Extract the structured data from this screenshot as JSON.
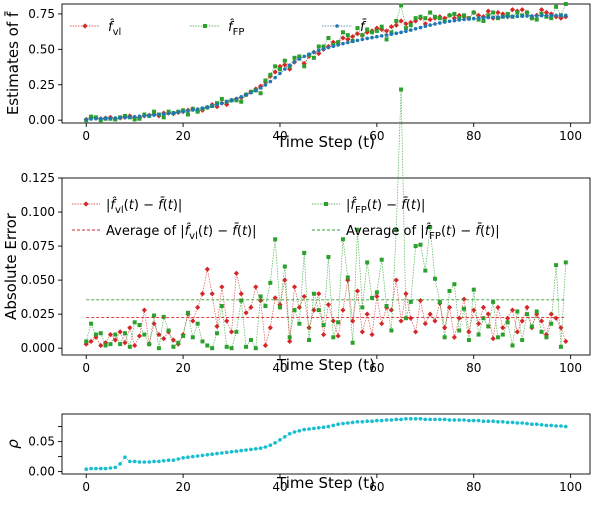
{
  "chart_data": [
    {
      "type": "line",
      "title": "",
      "xlabel": "Time Step (t)",
      "ylabel": "Estimates of f̄",
      "xlim": [
        -5,
        104
      ],
      "ylim": [
        -0.02,
        0.82
      ],
      "xticks": [
        0,
        20,
        40,
        60,
        80,
        100
      ],
      "yticks": [
        0.0,
        0.25,
        0.5,
        0.75
      ],
      "ytick_labels": [
        "0.00",
        "0.25",
        "0.50",
        "0.75"
      ],
      "legend_placement": "top-left",
      "grid": false,
      "x": [
        0,
        1,
        2,
        3,
        4,
        5,
        6,
        7,
        8,
        9,
        10,
        11,
        12,
        13,
        14,
        15,
        16,
        17,
        18,
        19,
        20,
        21,
        22,
        23,
        24,
        25,
        26,
        27,
        28,
        29,
        30,
        31,
        32,
        33,
        34,
        35,
        36,
        37,
        38,
        39,
        40,
        41,
        42,
        43,
        44,
        45,
        46,
        47,
        48,
        49,
        50,
        51,
        52,
        53,
        54,
        55,
        56,
        57,
        58,
        59,
        60,
        61,
        62,
        63,
        64,
        65,
        66,
        67,
        68,
        69,
        70,
        71,
        72,
        73,
        74,
        75,
        76,
        77,
        78,
        79,
        80,
        81,
        82,
        83,
        84,
        85,
        86,
        87,
        88,
        89,
        90,
        91,
        92,
        93,
        94,
        95,
        96,
        97,
        98,
        99
      ],
      "series": [
        {
          "name": "f̂_vl",
          "color": "#d62728",
          "marker": "diamond",
          "values": [
            0.005,
            0.02,
            0.015,
            0.01,
            0.015,
            0.02,
            0.01,
            0.015,
            0.02,
            0.03,
            0.02,
            0.015,
            0.03,
            0.035,
            0.04,
            0.03,
            0.05,
            0.05,
            0.045,
            0.055,
            0.06,
            0.07,
            0.08,
            0.065,
            0.07,
            0.09,
            0.11,
            0.095,
            0.12,
            0.11,
            0.14,
            0.15,
            0.16,
            0.18,
            0.2,
            0.22,
            0.24,
            0.27,
            0.31,
            0.34,
            0.38,
            0.39,
            0.36,
            0.41,
            0.44,
            0.4,
            0.45,
            0.48,
            0.47,
            0.5,
            0.52,
            0.55,
            0.55,
            0.58,
            0.57,
            0.59,
            0.61,
            0.6,
            0.62,
            0.63,
            0.65,
            0.64,
            0.63,
            0.66,
            0.67,
            0.7,
            0.68,
            0.69,
            0.7,
            0.72,
            0.68,
            0.71,
            0.72,
            0.73,
            0.72,
            0.74,
            0.72,
            0.74,
            0.73,
            0.72,
            0.76,
            0.74,
            0.73,
            0.77,
            0.72,
            0.76,
            0.75,
            0.73,
            0.78,
            0.77,
            0.78,
            0.76,
            0.72,
            0.74,
            0.78,
            0.76,
            0.75,
            0.73,
            0.72,
            0.73
          ]
        },
        {
          "name": "f̂_FP",
          "color": "#2ca02c",
          "marker": "square",
          "values": [
            0.0,
            0.025,
            0.02,
            0.0,
            0.01,
            0.01,
            0.005,
            0.02,
            0.03,
            0.02,
            0.005,
            0.01,
            0.04,
            0.03,
            0.06,
            0.04,
            0.02,
            0.06,
            0.05,
            0.06,
            0.07,
            0.04,
            0.08,
            0.06,
            0.08,
            0.09,
            0.1,
            0.12,
            0.15,
            0.13,
            0.14,
            0.14,
            0.13,
            0.18,
            0.2,
            0.21,
            0.19,
            0.28,
            0.32,
            0.38,
            0.36,
            0.42,
            0.38,
            0.44,
            0.45,
            0.38,
            0.46,
            0.44,
            0.52,
            0.52,
            0.58,
            0.53,
            0.55,
            0.62,
            0.6,
            0.56,
            0.65,
            0.6,
            0.64,
            0.62,
            0.63,
            0.66,
            0.57,
            0.62,
            0.7,
            0.81,
            0.65,
            0.67,
            0.72,
            0.73,
            0.72,
            0.76,
            0.73,
            0.72,
            0.7,
            0.74,
            0.75,
            0.72,
            0.74,
            0.72,
            0.76,
            0.71,
            0.7,
            0.74,
            0.76,
            0.72,
            0.73,
            0.75,
            0.73,
            0.76,
            0.74,
            0.76,
            0.72,
            0.71,
            0.75,
            0.73,
            0.72,
            0.8,
            0.74,
            0.82
          ]
        },
        {
          "name": "f̄",
          "color": "#1f77b4",
          "marker": "dot",
          "values": [
            0.005,
            0.008,
            0.01,
            0.011,
            0.012,
            0.013,
            0.015,
            0.017,
            0.019,
            0.021,
            0.024,
            0.027,
            0.03,
            0.033,
            0.036,
            0.04,
            0.043,
            0.047,
            0.051,
            0.056,
            0.061,
            0.066,
            0.072,
            0.078,
            0.085,
            0.092,
            0.1,
            0.109,
            0.119,
            0.129,
            0.14,
            0.152,
            0.165,
            0.179,
            0.194,
            0.21,
            0.228,
            0.249,
            0.272,
            0.3,
            0.33,
            0.36,
            0.388,
            0.412,
            0.432,
            0.45,
            0.466,
            0.48,
            0.492,
            0.503,
            0.513,
            0.522,
            0.531,
            0.54,
            0.548,
            0.556,
            0.563,
            0.57,
            0.577,
            0.583,
            0.589,
            0.595,
            0.601,
            0.607,
            0.613,
            0.62,
            0.628,
            0.636,
            0.645,
            0.654,
            0.663,
            0.671,
            0.679,
            0.686,
            0.692,
            0.698,
            0.703,
            0.707,
            0.711,
            0.714,
            0.717,
            0.72,
            0.722,
            0.724,
            0.726,
            0.728,
            0.73,
            0.731,
            0.732,
            0.733,
            0.734,
            0.735,
            0.736,
            0.737,
            0.738,
            0.738,
            0.738,
            0.739,
            0.739,
            0.74
          ]
        }
      ]
    },
    {
      "type": "line",
      "title": "",
      "xlabel": "Time Step (t)",
      "ylabel": "Absolute Error",
      "xlim": [
        -5,
        104
      ],
      "ylim": [
        -0.005,
        0.125
      ],
      "xticks": [
        0,
        20,
        40,
        60,
        80,
        100
      ],
      "yticks": [
        0.0,
        0.025,
        0.05,
        0.075,
        0.1,
        0.125
      ],
      "ytick_labels": [
        "0.000",
        "0.025",
        "0.050",
        "0.075",
        "0.100",
        "0.125"
      ],
      "legend_placement": "top",
      "grid": false,
      "x": [
        0,
        1,
        2,
        3,
        4,
        5,
        6,
        7,
        8,
        9,
        10,
        11,
        12,
        13,
        14,
        15,
        16,
        17,
        18,
        19,
        20,
        21,
        22,
        23,
        24,
        25,
        26,
        27,
        28,
        29,
        30,
        31,
        32,
        33,
        34,
        35,
        36,
        37,
        38,
        39,
        40,
        41,
        42,
        43,
        44,
        45,
        46,
        47,
        48,
        49,
        50,
        51,
        52,
        53,
        54,
        55,
        56,
        57,
        58,
        59,
        60,
        61,
        62,
        63,
        64,
        65,
        66,
        67,
        68,
        69,
        70,
        71,
        72,
        73,
        74,
        75,
        76,
        77,
        78,
        79,
        80,
        81,
        82,
        83,
        84,
        85,
        86,
        87,
        88,
        89,
        90,
        91,
        92,
        93,
        94,
        95,
        96,
        97,
        98,
        99
      ],
      "series": [
        {
          "name": "|f̂_vl(t) − f̄(t)|",
          "color": "#d62728",
          "marker": "diamond",
          "values": [
            0.003,
            0.005,
            0.008,
            0.002,
            0.004,
            0.01,
            0.006,
            0.012,
            0.004,
            0.015,
            0.002,
            0.009,
            0.028,
            0.003,
            0.018,
            0.01,
            0.007,
            0.012,
            0.006,
            0.003,
            0.01,
            0.025,
            0.02,
            0.03,
            0.04,
            0.058,
            0.04,
            0.016,
            0.045,
            0.02,
            0.012,
            0.055,
            0.04,
            0.026,
            0.03,
            0.045,
            0.035,
            0.002,
            0.015,
            0.037,
            0.032,
            0.05,
            0.005,
            0.045,
            0.03,
            0.038,
            0.015,
            0.028,
            0.04,
            0.01,
            0.032,
            0.02,
            0.009,
            0.028,
            0.05,
            0.02,
            0.042,
            0.012,
            0.025,
            0.01,
            0.038,
            0.018,
            0.03,
            0.028,
            0.05,
            0.02,
            0.04,
            0.022,
            0.012,
            0.035,
            0.018,
            0.025,
            0.02,
            0.033,
            0.015,
            0.03,
            0.008,
            0.022,
            0.036,
            0.012,
            0.028,
            0.018,
            0.03,
            0.025,
            0.007,
            0.03,
            0.015,
            0.022,
            0.028,
            0.012,
            0.02,
            0.03,
            0.015,
            0.025,
            0.02,
            0.01,
            0.025,
            0.022,
            0.015,
            0.005
          ]
        },
        {
          "name": "|f̂_FP(t) − f̄(t)|",
          "color": "#2ca02c",
          "marker": "square",
          "values": [
            0.005,
            0.018,
            0.01,
            0.011,
            0.002,
            0.003,
            0.01,
            0.003,
            0.011,
            0.001,
            0.019,
            0.017,
            0.01,
            0.003,
            0.024,
            0.0,
            0.023,
            0.013,
            0.001,
            0.004,
            0.009,
            0.026,
            0.008,
            0.018,
            0.005,
            0.002,
            0.0,
            0.011,
            0.031,
            0.001,
            0.0,
            0.012,
            0.035,
            0.001,
            0.006,
            0.0,
            0.038,
            0.031,
            0.048,
            0.08,
            0.03,
            0.06,
            0.008,
            0.028,
            0.018,
            0.07,
            0.006,
            0.04,
            0.028,
            0.017,
            0.067,
            0.008,
            0.019,
            0.08,
            0.052,
            0.004,
            0.087,
            0.03,
            0.063,
            0.037,
            0.041,
            0.065,
            0.031,
            0.013,
            0.087,
            0.19,
            0.022,
            0.034,
            0.075,
            0.076,
            0.057,
            0.089,
            0.051,
            0.034,
            0.008,
            0.042,
            0.047,
            0.013,
            0.029,
            0.006,
            0.043,
            0.01,
            0.022,
            0.016,
            0.034,
            0.008,
            0.01,
            0.019,
            0.002,
            0.027,
            0.006,
            0.025,
            0.016,
            0.027,
            0.012,
            0.008,
            0.018,
            0.061,
            0.001,
            0.063
          ]
        },
        {
          "name": "Average of |f̂_vl(t) − f̄(t)|",
          "color": "#d62728",
          "dashed": true,
          "average": 0.0225
        },
        {
          "name": "Average of |f̂_FP(t) − f̄(t)|",
          "color": "#2ca02c",
          "dashed": true,
          "average": 0.0355
        }
      ]
    },
    {
      "type": "line",
      "title": "",
      "xlabel": "Time Step (t)",
      "ylabel": "ρ",
      "xlim": [
        -5,
        104
      ],
      "ylim": [
        -0.004,
        0.096
      ],
      "xticks": [
        0,
        20,
        40,
        60,
        80,
        100
      ],
      "yticks": [
        0.0,
        0.025,
        0.05,
        0.075
      ],
      "ytick_labels": [
        "0.00",
        "",
        "0.05",
        ""
      ],
      "grid": false,
      "x": [
        0,
        1,
        2,
        3,
        4,
        5,
        6,
        7,
        8,
        9,
        10,
        11,
        12,
        13,
        14,
        15,
        16,
        17,
        18,
        19,
        20,
        21,
        22,
        23,
        24,
        25,
        26,
        27,
        28,
        29,
        30,
        31,
        32,
        33,
        34,
        35,
        36,
        37,
        38,
        39,
        40,
        41,
        42,
        43,
        44,
        45,
        46,
        47,
        48,
        49,
        50,
        51,
        52,
        53,
        54,
        55,
        56,
        57,
        58,
        59,
        60,
        61,
        62,
        63,
        64,
        65,
        66,
        67,
        68,
        69,
        70,
        71,
        72,
        73,
        74,
        75,
        76,
        77,
        78,
        79,
        80,
        81,
        82,
        83,
        84,
        85,
        86,
        87,
        88,
        89,
        90,
        91,
        92,
        93,
        94,
        95,
        96,
        97,
        98,
        99
      ],
      "series": [
        {
          "name": "",
          "color": "#17becf",
          "marker": "dot",
          "values": [
            0.004,
            0.005,
            0.005,
            0.005,
            0.005,
            0.006,
            0.007,
            0.013,
            0.024,
            0.017,
            0.017,
            0.016,
            0.016,
            0.016,
            0.017,
            0.017,
            0.018,
            0.019,
            0.019,
            0.021,
            0.023,
            0.024,
            0.025,
            0.026,
            0.027,
            0.028,
            0.029,
            0.03,
            0.031,
            0.032,
            0.033,
            0.034,
            0.035,
            0.036,
            0.037,
            0.038,
            0.039,
            0.041,
            0.044,
            0.048,
            0.053,
            0.058,
            0.063,
            0.066,
            0.068,
            0.07,
            0.071,
            0.072,
            0.073,
            0.074,
            0.075,
            0.077,
            0.079,
            0.08,
            0.081,
            0.082,
            0.083,
            0.083,
            0.084,
            0.084,
            0.085,
            0.085,
            0.086,
            0.086,
            0.087,
            0.087,
            0.088,
            0.088,
            0.088,
            0.088,
            0.087,
            0.087,
            0.087,
            0.087,
            0.087,
            0.086,
            0.086,
            0.086,
            0.086,
            0.085,
            0.085,
            0.085,
            0.084,
            0.084,
            0.084,
            0.083,
            0.083,
            0.082,
            0.082,
            0.081,
            0.081,
            0.08,
            0.079,
            0.079,
            0.078,
            0.077,
            0.077,
            0.076,
            0.076,
            0.075
          ]
        }
      ]
    }
  ]
}
